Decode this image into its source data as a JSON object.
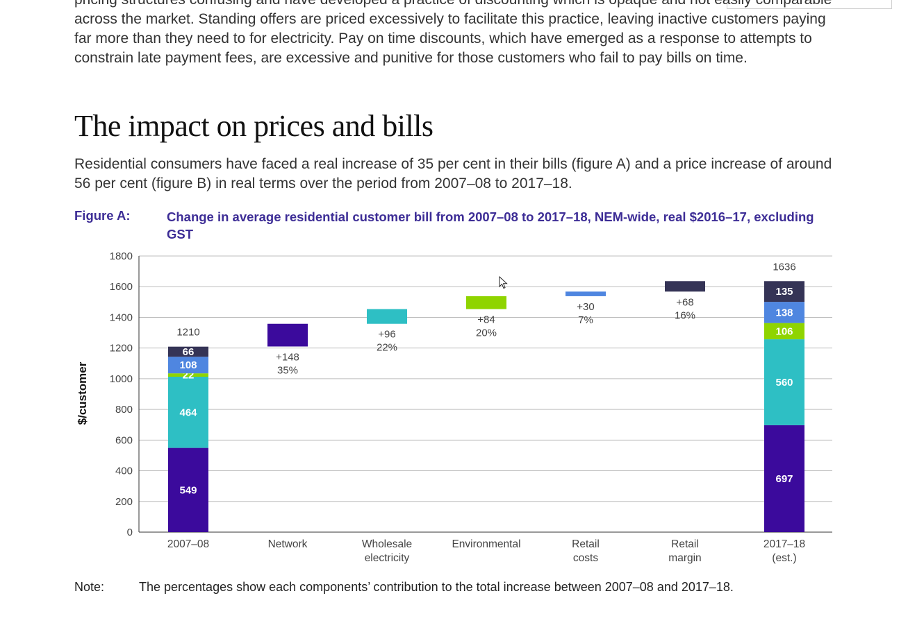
{
  "intro_text": "pricing structures confusing and have developed a practice of discounting which is opaque and not easily comparable across the market. Standing offers are priced excessively to facilitate this practice, leaving inactive customers paying far more than they need to for electricity. Pay on time discounts, which have emerged as a response to attempts to constrain late payment fees, are excessive and punitive for those customers who fail to pay bills on time.",
  "section_heading": "The impact on prices and bills",
  "lead_text": "Residential consumers have faced a real increase of 35 per cent in their bills (figure A) and a price increase of around 56 per cent (figure B) in real terms over the period from 2007–08 to 2017–18.",
  "figure": {
    "label": "Figure A:",
    "title": "Change in average residential customer bill from 2007–08 to 2017–18, NEM-wide, real $2016–17, excluding GST"
  },
  "note": {
    "label": "Note:",
    "text": "The percentages show each components’ contribution to the total increase between 2007–08 and 2017–18."
  },
  "colors": {
    "network": "#3b0a9c",
    "wholesale": "#2ebfc4",
    "environmental": "#8fd400",
    "retail_costs": "#4f86e0",
    "retail_margin": "#353456",
    "gridline": "#bdbdbd",
    "axis": "#333333"
  },
  "chart_data": {
    "type": "bar",
    "subtype": "waterfall",
    "ylabel": "$/customer",
    "ylim": [
      0,
      1800
    ],
    "yticks": [
      0,
      200,
      400,
      600,
      800,
      1000,
      1200,
      1400,
      1600,
      1800
    ],
    "grid": true,
    "categories": [
      {
        "label": [
          "2007–08"
        ],
        "kind": "total"
      },
      {
        "label": [
          "Network"
        ],
        "kind": "delta"
      },
      {
        "label": [
          "Wholesale",
          "electricity"
        ],
        "kind": "delta"
      },
      {
        "label": [
          "Environmental"
        ],
        "kind": "delta"
      },
      {
        "label": [
          "Retail",
          "costs"
        ],
        "kind": "delta"
      },
      {
        "label": [
          "Retail",
          "margin"
        ],
        "kind": "delta"
      },
      {
        "label": [
          "2017–18",
          "(est.)"
        ],
        "kind": "total"
      }
    ],
    "totals": [
      {
        "category": "2007–08",
        "total": 1210,
        "total_label": "1210",
        "stack": [
          {
            "component": "network",
            "value": 549,
            "label": "549"
          },
          {
            "component": "wholesale",
            "value": 464,
            "label": "464"
          },
          {
            "component": "environmental",
            "value": 22,
            "label": "22"
          },
          {
            "component": "retail_costs",
            "value": 108,
            "label": "108"
          },
          {
            "component": "retail_margin",
            "value": 66,
            "label": "66"
          }
        ]
      },
      {
        "category": "2017–18 (est.)",
        "total": 1636,
        "total_label": "1636",
        "stack": [
          {
            "component": "network",
            "value": 697,
            "label": "697"
          },
          {
            "component": "wholesale",
            "value": 560,
            "label": "560"
          },
          {
            "component": "environmental",
            "value": 106,
            "label": "106"
          },
          {
            "component": "retail_costs",
            "value": 138,
            "label": "138"
          },
          {
            "component": "retail_margin",
            "value": 135,
            "label": "135"
          }
        ]
      }
    ],
    "deltas": [
      {
        "category": "Network",
        "component": "network",
        "from": 1210,
        "to": 1358,
        "change_label": "+148",
        "share_label": "35%"
      },
      {
        "category": "Wholesale electricity",
        "component": "wholesale",
        "from": 1358,
        "to": 1454,
        "change_label": "+96",
        "share_label": "22%"
      },
      {
        "category": "Environmental",
        "component": "environmental",
        "from": 1454,
        "to": 1538,
        "change_label": "+84",
        "share_label": "20%"
      },
      {
        "category": "Retail costs",
        "component": "retail_costs",
        "from": 1538,
        "to": 1568,
        "change_label": "+30",
        "share_label": "7%"
      },
      {
        "category": "Retail margin",
        "component": "retail_margin",
        "from": 1568,
        "to": 1636,
        "change_label": "+68",
        "share_label": "16%"
      }
    ]
  }
}
